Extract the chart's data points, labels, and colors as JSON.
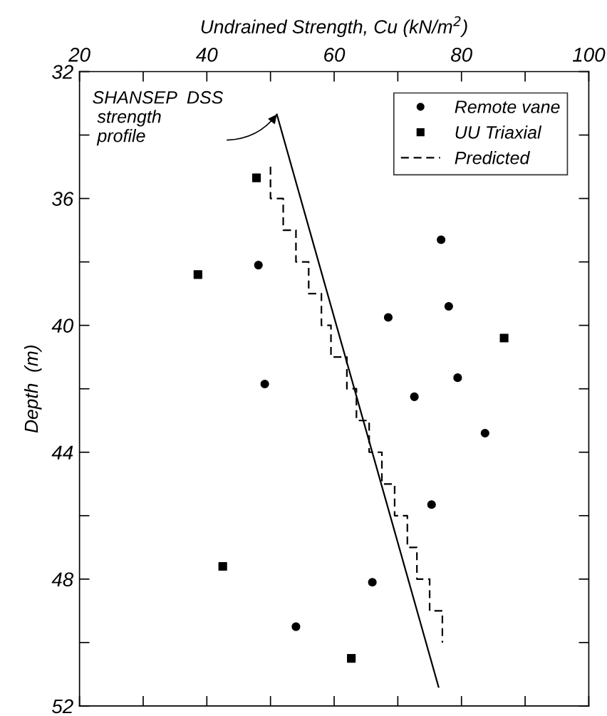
{
  "chart_data": {
    "type": "scatter",
    "xlabel": "Undrained Strength, Cu (kN/m$^{2}$)",
    "ylabel": "Depth  (m)",
    "xlim": [
      20,
      100
    ],
    "xticks": [
      20,
      {
        "value": 30,
        "label": null
      },
      40,
      {
        "value": 50,
        "label": null
      },
      60,
      {
        "value": 70,
        "label": null
      },
      80,
      {
        "value": 90,
        "label": null
      },
      100
    ],
    "ylim": [
      52,
      32
    ],
    "yticks": [
      32,
      {
        "value": 34,
        "label": null
      },
      36,
      {
        "value": 38,
        "label": null
      },
      40,
      {
        "value": 42,
        "label": null
      },
      44,
      {
        "value": 46,
        "label": null
      },
      48,
      {
        "value": 50,
        "label": null
      },
      52
    ],
    "grid": false,
    "legend": "top right",
    "series": [
      {
        "name": "Remote vane",
        "marker": "circle",
        "color": "#000000",
        "x": [
          76.8,
          48.1,
          78.0,
          68.5,
          49.1,
          79.4,
          72.6,
          83.7,
          75.3,
          66.0,
          54.0
        ],
        "values": [
          37.3,
          38.1,
          39.4,
          39.75,
          41.85,
          41.65,
          42.25,
          43.4,
          45.65,
          48.1,
          49.5
        ]
      },
      {
        "name": "UU Triaxial",
        "marker": "square",
        "color": "#000000",
        "x": [
          47.8,
          38.6,
          86.7,
          42.5,
          62.7
        ],
        "values": [
          35.35,
          38.4,
          40.4,
          47.6,
          50.5
        ]
      },
      {
        "name": "Predicted",
        "type": "line",
        "line_style": "dashed",
        "color": "#000000",
        "x": [
          50,
          50,
          52,
          52,
          54,
          54,
          56,
          56,
          58,
          58,
          59.5,
          59.5,
          62,
          62,
          63.5,
          63.5,
          65.5,
          65.5,
          67.5,
          67.5,
          69.5,
          69.5,
          71.5,
          71.5,
          73,
          73,
          75,
          75,
          77,
          77
        ],
        "values": [
          35,
          36,
          36,
          37,
          37,
          38,
          38,
          39,
          39,
          40,
          40,
          41,
          41,
          42,
          42,
          43,
          43,
          44,
          44,
          45,
          45,
          46,
          46,
          47,
          47,
          48,
          48,
          49,
          49,
          50
        ]
      },
      {
        "type": "line",
        "line_style": "solid",
        "color": "#000000",
        "x": [
          51.0,
          76.4
        ],
        "values": [
          33.35,
          51.4
        ]
      }
    ],
    "annotations": [
      {
        "text": "SHANSEP  DSS\n strength\n profile",
        "x": 51.0,
        "y": 33.35
      }
    ]
  }
}
